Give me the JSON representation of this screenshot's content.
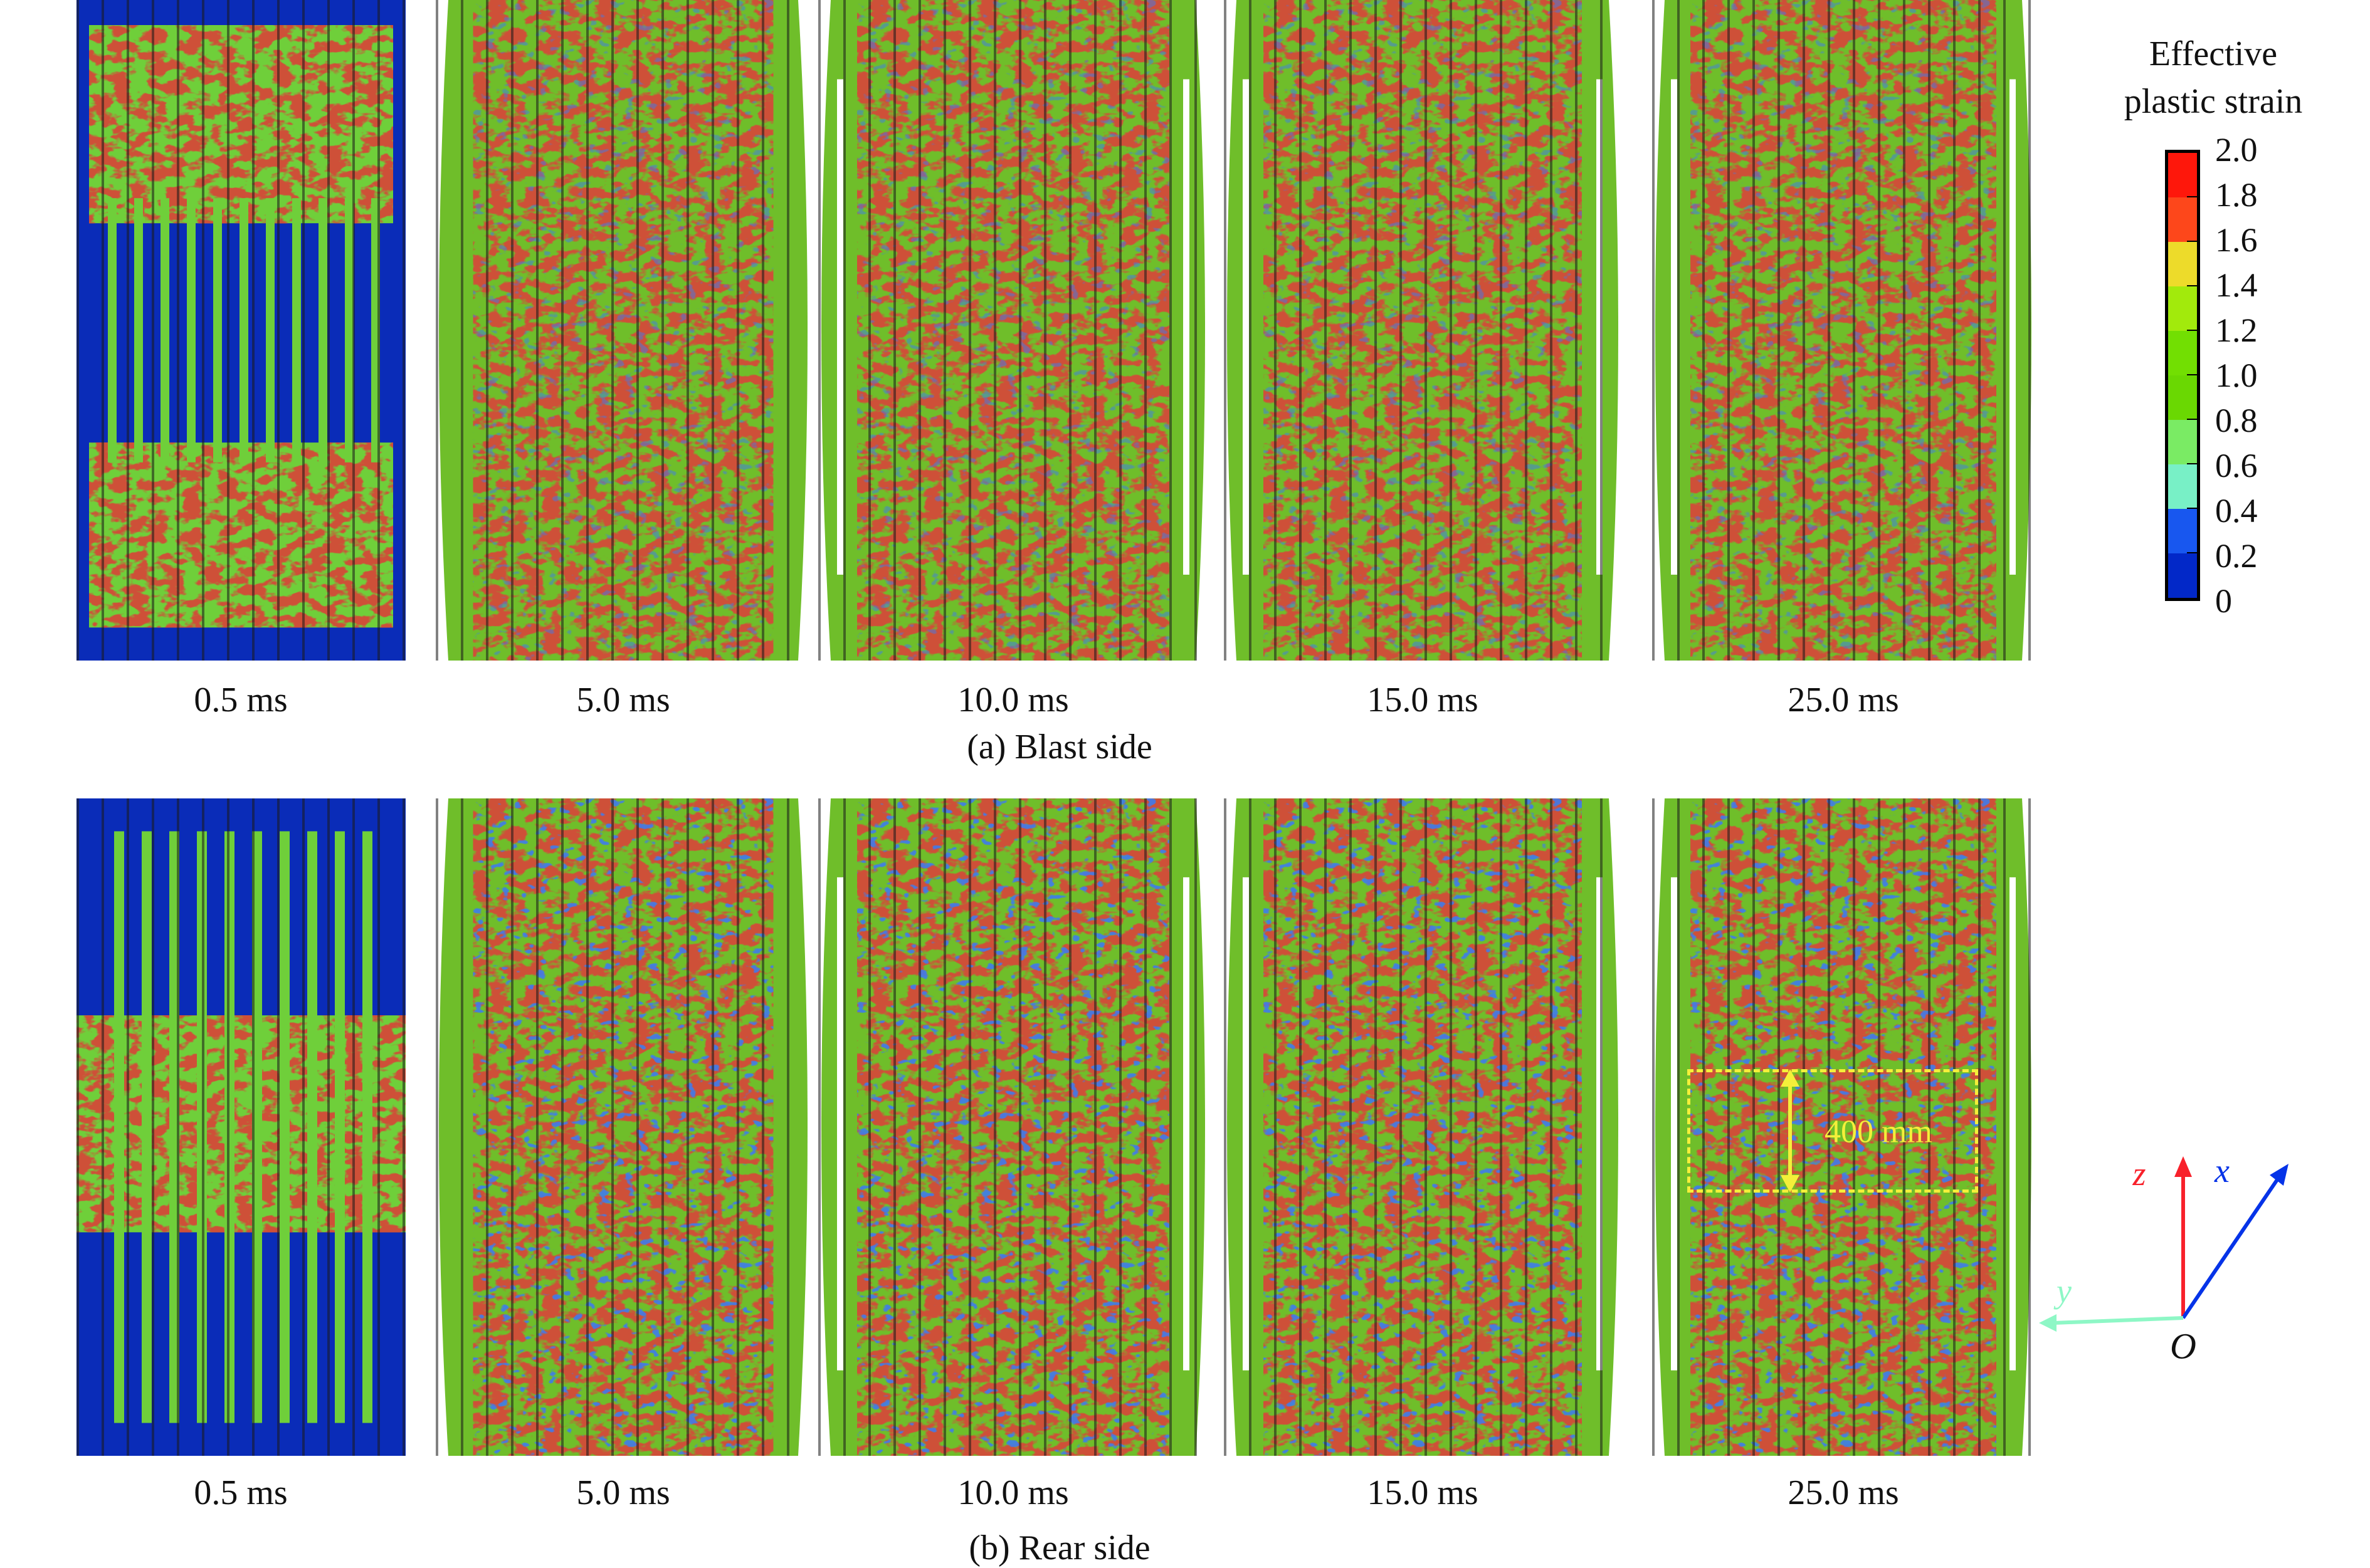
{
  "rows": [
    {
      "caption": "(a) Blast side",
      "times": [
        "0.5 ms",
        "5.0 ms",
        "10.0 ms",
        "15.0 ms",
        "25.0 ms"
      ]
    },
    {
      "caption": "(b) Rear side",
      "times": [
        "0.5 ms",
        "5.0 ms",
        "10.0 ms",
        "15.0 ms",
        "25.0 ms"
      ]
    }
  ],
  "legend": {
    "title_line1": "Effective",
    "title_line2": "plastic strain",
    "labels": [
      "2.0",
      "1.8",
      "1.6",
      "1.4",
      "1.2",
      "1.0",
      "0.8",
      "0.6",
      "0.4",
      "0.2",
      "0"
    ],
    "colors": [
      "#fe170b",
      "#fd471b",
      "#eddb2a",
      "#a2ea0c",
      "#72df02",
      "#6ad802",
      "#7aeb64",
      "#78f0c6",
      "#1857ef",
      "#0228c8"
    ]
  },
  "annotation": {
    "text": "400 mm",
    "color": "#f4ef3a"
  },
  "axes": {
    "z": "z",
    "x": "x",
    "y": "y",
    "origin": "O",
    "z_color": "#f8212b",
    "x_color": "#0533e8",
    "y_color": "#8ef7c6"
  }
}
